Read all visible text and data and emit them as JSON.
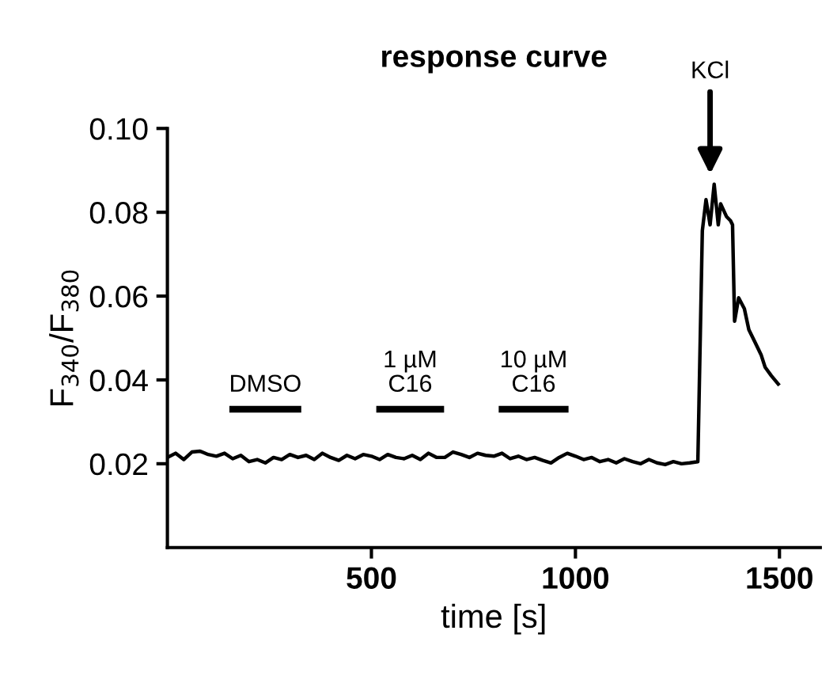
{
  "chart_data": {
    "type": "line",
    "title": "response curve",
    "xlabel": "time [s]",
    "ylabel": "F$_{340}$/F$_{380}$",
    "xlim": [
      0,
      1600
    ],
    "xticks": [
      500,
      1000,
      1500
    ],
    "ylim": [
      0,
      0.1
    ],
    "yticks": [
      {
        "value": 0.02,
        "label": "0.02"
      },
      {
        "value": 0.04,
        "label": "0.04"
      },
      {
        "value": 0.06,
        "label": "0.06"
      },
      {
        "value": 0.08,
        "label": "0.08"
      },
      {
        "value": 0.1,
        "label": "0.10"
      }
    ],
    "grid": false,
    "legend": false,
    "marker": "none",
    "line_style": "solid",
    "series": [
      {
        "color": "#000000",
        "x": [
          0,
          20,
          40,
          60,
          80,
          100,
          120,
          140,
          160,
          180,
          200,
          220,
          240,
          260,
          280,
          300,
          320,
          340,
          360,
          380,
          400,
          420,
          440,
          460,
          480,
          500,
          520,
          540,
          560,
          580,
          600,
          620,
          640,
          660,
          680,
          700,
          720,
          740,
          760,
          780,
          800,
          820,
          840,
          860,
          880,
          900,
          920,
          940,
          960,
          980,
          1000,
          1020,
          1040,
          1060,
          1080,
          1100,
          1120,
          1140,
          1160,
          1180,
          1200,
          1220,
          1240,
          1260,
          1280,
          1300,
          1311,
          1320,
          1330,
          1340,
          1350,
          1356,
          1370,
          1380,
          1385,
          1390,
          1400,
          1414,
          1425,
          1440,
          1455,
          1465,
          1480,
          1497
        ],
        "values": [
          0.0215,
          0.0225,
          0.021,
          0.0228,
          0.023,
          0.0222,
          0.0218,
          0.0225,
          0.0212,
          0.022,
          0.0205,
          0.021,
          0.0202,
          0.0215,
          0.021,
          0.0222,
          0.0215,
          0.022,
          0.021,
          0.0225,
          0.0215,
          0.0208,
          0.022,
          0.0212,
          0.0222,
          0.0218,
          0.021,
          0.0222,
          0.0215,
          0.0212,
          0.022,
          0.021,
          0.0225,
          0.0215,
          0.0215,
          0.0228,
          0.0222,
          0.0215,
          0.0225,
          0.022,
          0.0218,
          0.0225,
          0.0212,
          0.0218,
          0.021,
          0.0215,
          0.0208,
          0.0202,
          0.0215,
          0.0225,
          0.0218,
          0.021,
          0.0215,
          0.0205,
          0.021,
          0.0202,
          0.0212,
          0.0205,
          0.02,
          0.021,
          0.0202,
          0.0198,
          0.0205,
          0.02,
          0.0202,
          0.0205,
          0.0756,
          0.083,
          0.077,
          0.0867,
          0.077,
          0.082,
          0.079,
          0.078,
          0.077,
          0.054,
          0.0596,
          0.057,
          0.052,
          0.049,
          0.046,
          0.043,
          0.041,
          0.039
        ]
      },
      {
        "name": "DMSO",
        "color": "#000000",
        "x": [
          160,
          320
        ],
        "values": [
          0.033,
          0.033
        ]
      },
      {
        "name": "1 µM\nC16",
        "color": "#000000",
        "x": [
          520,
          670
        ],
        "values": [
          0.033,
          0.033
        ]
      },
      {
        "name": "10 µM\nC16",
        "color": "#000000",
        "x": [
          820,
          975
        ],
        "values": [
          0.033,
          0.033
        ]
      }
    ],
    "annotations": [
      {
        "text": "KCl",
        "x": 1330,
        "y": 0.088
      }
    ]
  }
}
